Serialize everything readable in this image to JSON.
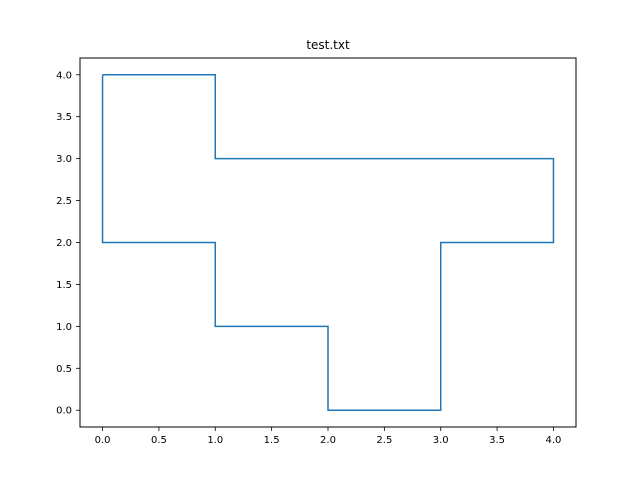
{
  "chart_data": {
    "type": "line",
    "title": "test.txt",
    "xlabel": "",
    "ylabel": "",
    "xlim": [
      -0.2,
      4.2
    ],
    "ylim": [
      -0.2,
      4.2
    ],
    "xticks": [
      0.0,
      0.5,
      1.0,
      1.5,
      2.0,
      2.5,
      3.0,
      3.5,
      4.0
    ],
    "yticks": [
      0.0,
      0.5,
      1.0,
      1.5,
      2.0,
      2.5,
      3.0,
      3.5,
      4.0
    ],
    "xtick_labels": [
      "0.0",
      "0.5",
      "1.0",
      "1.5",
      "2.0",
      "2.5",
      "3.0",
      "3.5",
      "4.0"
    ],
    "ytick_labels": [
      "0.0",
      "0.5",
      "1.0",
      "1.5",
      "2.0",
      "2.5",
      "3.0",
      "3.5",
      "4.0"
    ],
    "grid": false,
    "series": [
      {
        "color": "#1f77b4",
        "x": [
          0,
          1,
          1,
          4,
          4,
          3,
          3,
          2,
          2,
          1,
          1,
          0,
          0
        ],
        "y": [
          4,
          4,
          3,
          3,
          2,
          2,
          0,
          0,
          1,
          1,
          2,
          2,
          4
        ]
      }
    ]
  }
}
